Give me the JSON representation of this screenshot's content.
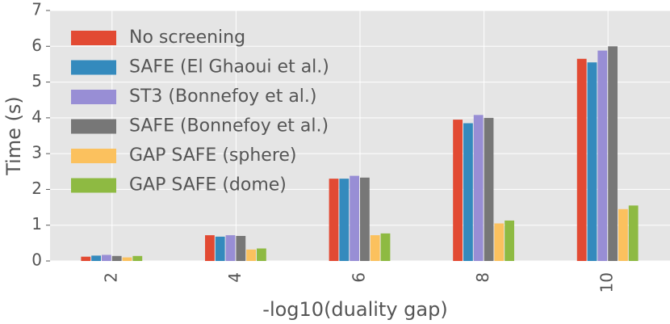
{
  "chart_data": {
    "type": "bar",
    "xlabel": "-log10(duality gap)",
    "ylabel": "Time (s)",
    "categories": [
      "2",
      "4",
      "6",
      "8",
      "10"
    ],
    "series": [
      {
        "name": "No screening",
        "color": "#e24a33",
        "values": [
          0.12,
          0.72,
          2.3,
          3.95,
          5.65
        ]
      },
      {
        "name": "SAFE (El Ghaoui et al.)",
        "color": "#348abd",
        "values": [
          0.15,
          0.68,
          2.3,
          3.85,
          5.55
        ]
      },
      {
        "name": "ST3 (Bonnefoy et al.)",
        "color": "#988ed5",
        "values": [
          0.17,
          0.72,
          2.38,
          4.08,
          5.88
        ]
      },
      {
        "name": "SAFE (Bonnefoy et al.)",
        "color": "#777777",
        "values": [
          0.14,
          0.7,
          2.33,
          4.0,
          6.0
        ]
      },
      {
        "name": "GAP SAFE (sphere)",
        "color": "#fbc15e",
        "values": [
          0.1,
          0.32,
          0.72,
          1.05,
          1.45
        ]
      },
      {
        "name": "GAP SAFE (dome)",
        "color": "#8eba42",
        "values": [
          0.14,
          0.35,
          0.77,
          1.13,
          1.55
        ]
      }
    ],
    "ylim": [
      0,
      7
    ],
    "yticks": [
      0,
      1,
      2,
      3,
      4,
      5,
      6,
      7
    ],
    "grid": true,
    "legend": "upper left"
  }
}
